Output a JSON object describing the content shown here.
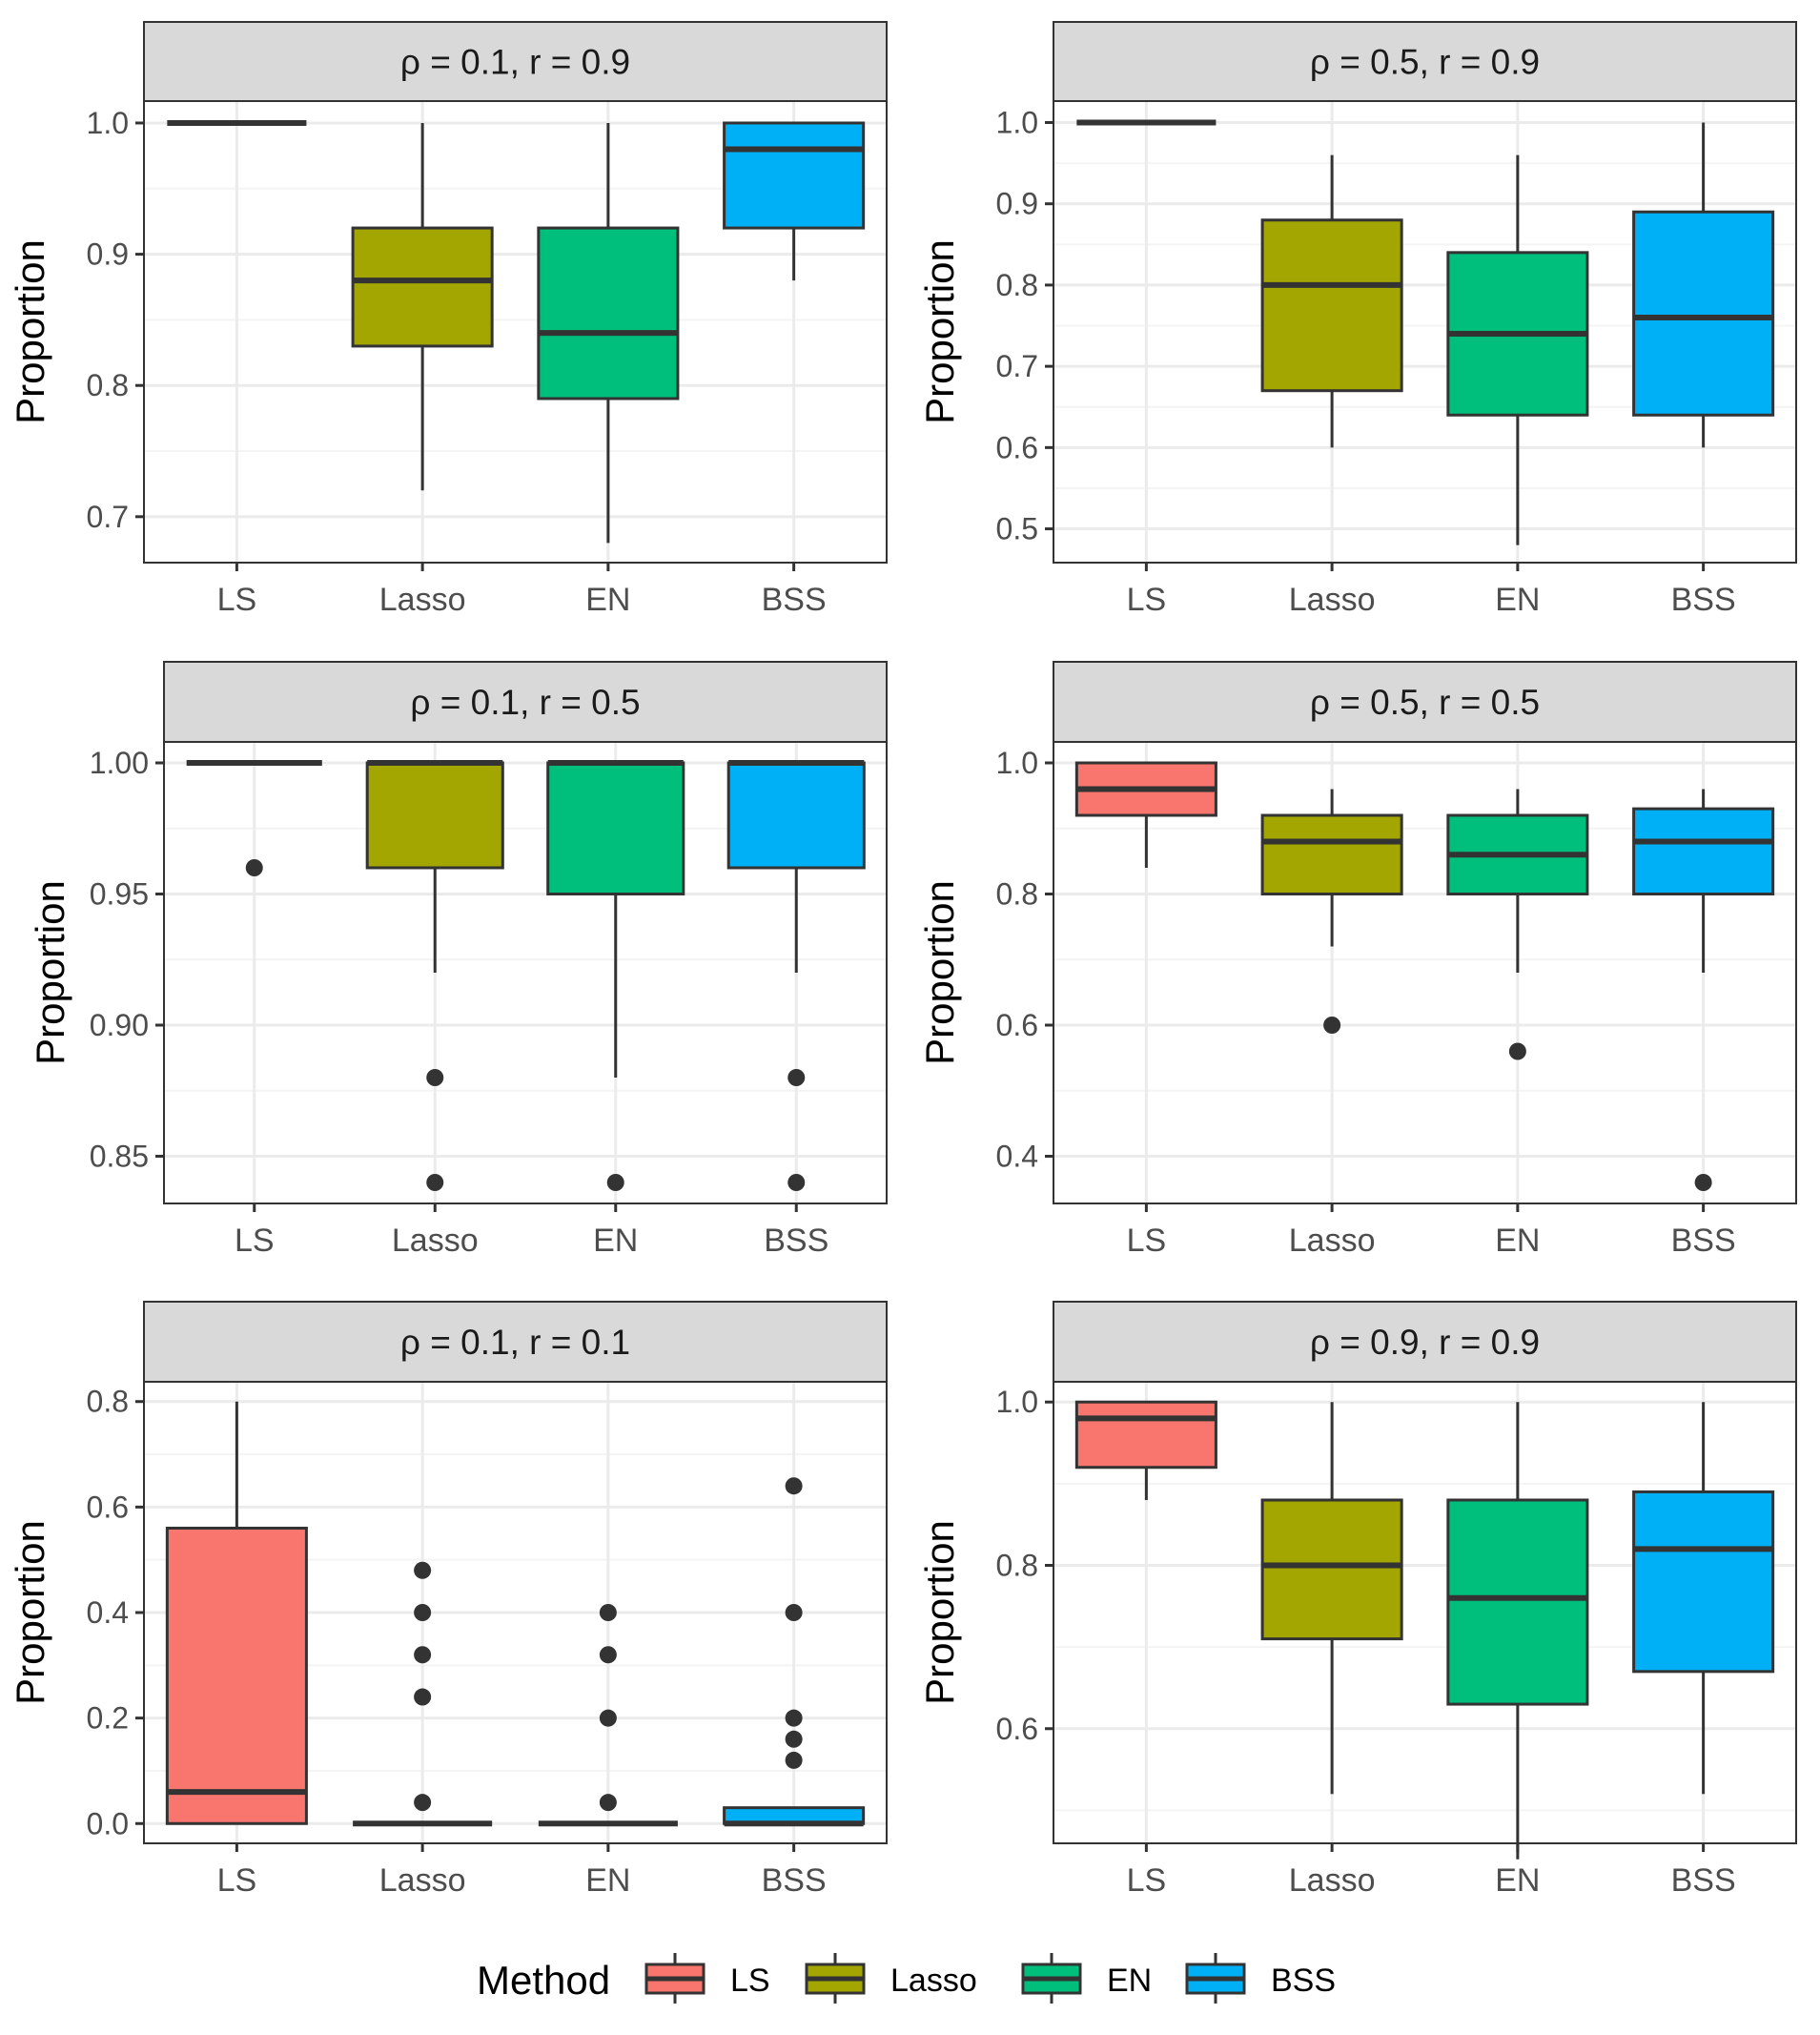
{
  "figure": {
    "ylabel": "Proportion",
    "categories": [
      "LS",
      "Lasso",
      "EN",
      "BSS"
    ],
    "legend": {
      "title": "Method",
      "items": [
        {
          "label": "LS",
          "color": "#F8766D"
        },
        {
          "label": "Lasso",
          "color": "#A3A500"
        },
        {
          "label": "EN",
          "color": "#00BF7D"
        },
        {
          "label": "BSS",
          "color": "#00B0F6"
        }
      ]
    }
  },
  "chart_data": [
    {
      "type": "boxplot",
      "title": "ρ = 0.1,  r = 0.9",
      "ylim": [
        0.665,
        1.0167
      ],
      "ticks": [
        {
          "v": 0.7,
          "label": "0.7"
        },
        {
          "v": 0.8,
          "label": "0.8"
        },
        {
          "v": 0.9,
          "label": "0.9"
        },
        {
          "v": 1.0,
          "label": "1.0"
        }
      ],
      "minor": [
        0.75,
        0.85,
        0.95
      ],
      "boxes": [
        {
          "category": "LS",
          "lower": 1.0,
          "q1": 1.0,
          "median": 1.0,
          "q3": 1.0,
          "upper": 1.0,
          "outliers": []
        },
        {
          "category": "Lasso",
          "lower": 0.72,
          "q1": 0.83,
          "median": 0.88,
          "q3": 0.92,
          "upper": 1.0,
          "outliers": []
        },
        {
          "category": "EN",
          "lower": 0.68,
          "q1": 0.79,
          "median": 0.84,
          "q3": 0.92,
          "upper": 1.0,
          "outliers": []
        },
        {
          "category": "BSS",
          "lower": 0.88,
          "q1": 0.92,
          "median": 0.98,
          "q3": 1.0,
          "upper": 1.0,
          "outliers": []
        }
      ]
    },
    {
      "type": "boxplot",
      "title": "ρ = 0.5,  r = 0.9",
      "ylim": [
        0.4584,
        1.0264
      ],
      "ticks": [
        {
          "v": 0.5,
          "label": "0.5"
        },
        {
          "v": 0.6,
          "label": "0.6"
        },
        {
          "v": 0.7,
          "label": "0.7"
        },
        {
          "v": 0.8,
          "label": "0.8"
        },
        {
          "v": 0.9,
          "label": "0.9"
        },
        {
          "v": 1.0,
          "label": "1.0"
        }
      ],
      "minor": [
        0.55,
        0.65,
        0.75,
        0.85,
        0.95
      ],
      "boxes": [
        {
          "category": "LS",
          "lower": 1.0,
          "q1": 1.0,
          "median": 1.0,
          "q3": 1.0,
          "upper": 1.0,
          "outliers": []
        },
        {
          "category": "Lasso",
          "lower": 0.6,
          "q1": 0.67,
          "median": 0.8,
          "q3": 0.88,
          "upper": 0.96,
          "outliers": []
        },
        {
          "category": "EN",
          "lower": 0.48,
          "q1": 0.64,
          "median": 0.74,
          "q3": 0.84,
          "upper": 0.96,
          "outliers": []
        },
        {
          "category": "BSS",
          "lower": 0.6,
          "q1": 0.64,
          "median": 0.76,
          "q3": 0.89,
          "upper": 1.0,
          "outliers": []
        }
      ]
    },
    {
      "type": "boxplot",
      "title": "ρ = 0.1,  r = 0.5",
      "ylim": [
        0.832,
        1.008
      ],
      "ticks": [
        {
          "v": 0.85,
          "label": "0.85"
        },
        {
          "v": 0.9,
          "label": "0.90"
        },
        {
          "v": 0.95,
          "label": "0.95"
        },
        {
          "v": 1.0,
          "label": "1.00"
        }
      ],
      "minor": [
        0.875,
        0.925,
        0.975
      ],
      "boxes": [
        {
          "category": "LS",
          "lower": 1.0,
          "q1": 1.0,
          "median": 1.0,
          "q3": 1.0,
          "upper": 1.0,
          "outliers": [
            0.96
          ]
        },
        {
          "category": "Lasso",
          "lower": 0.92,
          "q1": 0.96,
          "median": 1.0,
          "q3": 1.0,
          "upper": 1.0,
          "outliers": [
            0.88,
            0.84
          ]
        },
        {
          "category": "EN",
          "lower": 0.88,
          "q1": 0.95,
          "median": 1.0,
          "q3": 1.0,
          "upper": 1.0,
          "outliers": [
            0.84
          ]
        },
        {
          "category": "BSS",
          "lower": 0.92,
          "q1": 0.96,
          "median": 1.0,
          "q3": 1.0,
          "upper": 1.0,
          "outliers": [
            0.88,
            0.84
          ]
        }
      ]
    },
    {
      "type": "boxplot",
      "title": "ρ = 0.5,  r = 0.5",
      "ylim": [
        0.328,
        1.032
      ],
      "ticks": [
        {
          "v": 0.4,
          "label": "0.4"
        },
        {
          "v": 0.6,
          "label": "0.6"
        },
        {
          "v": 0.8,
          "label": "0.8"
        },
        {
          "v": 1.0,
          "label": "1.0"
        }
      ],
      "minor": [
        0.5,
        0.7,
        0.9
      ],
      "boxes": [
        {
          "category": "LS",
          "lower": 0.84,
          "q1": 0.92,
          "median": 0.96,
          "q3": 1.0,
          "upper": 1.0,
          "outliers": []
        },
        {
          "category": "Lasso",
          "lower": 0.72,
          "q1": 0.8,
          "median": 0.88,
          "q3": 0.92,
          "upper": 0.96,
          "outliers": [
            0.6
          ]
        },
        {
          "category": "EN",
          "lower": 0.68,
          "q1": 0.8,
          "median": 0.86,
          "q3": 0.92,
          "upper": 0.96,
          "outliers": [
            0.56
          ]
        },
        {
          "category": "BSS",
          "lower": 0.68,
          "q1": 0.8,
          "median": 0.88,
          "q3": 0.93,
          "upper": 0.96,
          "outliers": [
            0.36
          ]
        }
      ]
    },
    {
      "type": "boxplot",
      "title": "ρ = 0.1,  r = 0.1",
      "ylim": [
        -0.0375,
        0.8375
      ],
      "ticks": [
        {
          "v": 0.0,
          "label": "0.0"
        },
        {
          "v": 0.2,
          "label": "0.2"
        },
        {
          "v": 0.4,
          "label": "0.4"
        },
        {
          "v": 0.6,
          "label": "0.6"
        },
        {
          "v": 0.8,
          "label": "0.8"
        }
      ],
      "minor": [
        0.1,
        0.3,
        0.5,
        0.7
      ],
      "boxes": [
        {
          "category": "LS",
          "lower": 0.0,
          "q1": 0.0,
          "median": 0.06,
          "q3": 0.56,
          "upper": 0.8,
          "outliers": []
        },
        {
          "category": "Lasso",
          "lower": 0.0,
          "q1": 0.0,
          "median": 0.0,
          "q3": 0.0,
          "upper": 0.0,
          "outliers": [
            0.48,
            0.4,
            0.32,
            0.24,
            0.04
          ]
        },
        {
          "category": "EN",
          "lower": 0.0,
          "q1": 0.0,
          "median": 0.0,
          "q3": 0.0,
          "upper": 0.0,
          "outliers": [
            0.4,
            0.32,
            0.2,
            0.04
          ]
        },
        {
          "category": "BSS",
          "lower": 0.0,
          "q1": 0.0,
          "median": 0.0,
          "q3": 0.03,
          "upper": 0.03,
          "outliers": [
            0.64,
            0.4,
            0.2,
            0.16,
            0.12
          ]
        }
      ]
    },
    {
      "type": "boxplot",
      "title": "ρ = 0.9,  r = 0.9",
      "ylim": [
        0.4596,
        1.0248
      ],
      "ticks": [
        {
          "v": 0.6,
          "label": "0.6"
        },
        {
          "v": 0.8,
          "label": "0.8"
        },
        {
          "v": 1.0,
          "label": "1.0"
        }
      ],
      "minor": [
        0.5,
        0.7,
        0.9
      ],
      "boxes": [
        {
          "category": "LS",
          "lower": 0.88,
          "q1": 0.92,
          "median": 0.98,
          "q3": 1.0,
          "upper": 1.0,
          "outliers": []
        },
        {
          "category": "Lasso",
          "lower": 0.52,
          "q1": 0.71,
          "median": 0.8,
          "q3": 0.88,
          "upper": 1.0,
          "outliers": []
        },
        {
          "category": "EN",
          "lower": 0.44,
          "q1": 0.63,
          "median": 0.76,
          "q3": 0.88,
          "upper": 1.0,
          "outliers": []
        },
        {
          "category": "BSS",
          "lower": 0.52,
          "q1": 0.67,
          "median": 0.82,
          "q3": 0.89,
          "upper": 1.0,
          "outliers": []
        }
      ]
    }
  ]
}
